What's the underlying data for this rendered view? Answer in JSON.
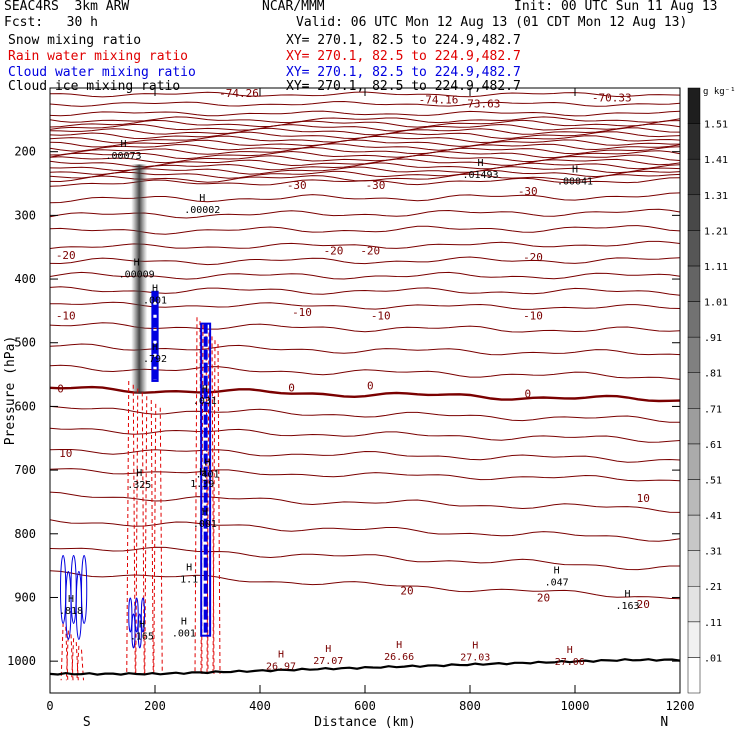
{
  "header": {
    "model": "SEAC4RS  3km ARW",
    "institution": "NCAR/MMM",
    "init": "Init: 00 UTC Sun 11 Aug 13",
    "fcst": "Fcst:   30 h",
    "valid": "Valid: 06 UTC Mon 12 Aug 13 (01 CDT Mon 12 Aug 13)"
  },
  "fields": [
    {
      "name": "Snow mixing ratio",
      "xy": "XY= 270.1, 82.5 to 224.9,482.7",
      "color": "#000000"
    },
    {
      "name": "Rain water mixing ratio",
      "xy": "XY= 270.1, 82.5 to 224.9,482.7",
      "color": "#e00000"
    },
    {
      "name": "Cloud water mixing ratio",
      "xy": "XY= 270.1, 82.5 to 224.9,482.7",
      "color": "#0000e0"
    },
    {
      "name": "Cloud ice mixing ratio",
      "xy": "XY= 270.1, 82.5 to 224.9,482.7",
      "color": "#000000"
    }
  ],
  "chart_data": {
    "type": "contour",
    "xlabel": "Distance (km)",
    "ylabel": "Pressure (hPa)",
    "xlim": [
      0,
      1200
    ],
    "ylim": [
      1050,
      100
    ],
    "x_ticks": [
      0,
      200,
      400,
      600,
      800,
      1000,
      1200
    ],
    "y_ticks": [
      200,
      300,
      400,
      500,
      600,
      700,
      800,
      900,
      1000
    ],
    "x_end_labels": {
      "left": "S",
      "right": "N"
    },
    "temperature_contours": [
      {
        "value": -70,
        "label": "-70",
        "p_left": 150,
        "p_right": 150,
        "label_x": 235
      },
      {
        "value": -30,
        "label": "-30",
        "p_left": 250,
        "p_right": 245,
        "label_x": 470
      },
      {
        "value": -20,
        "label": "-20",
        "p_left": 350,
        "p_right": 345,
        "label_x": 470
      },
      {
        "value": -10,
        "label": "-10",
        "p_left": 440,
        "p_right": 445,
        "label_x": 600
      },
      {
        "value": 0,
        "label": "0",
        "p_left": 572,
        "p_right": 590,
        "label_x": 455
      },
      {
        "value": 10,
        "label": "10",
        "p_left": 700,
        "p_right": 715,
        "label_x": 570
      },
      {
        "value": 20,
        "label": "20",
        "p_left": 860,
        "p_right": 900,
        "label_x": 620
      }
    ],
    "contour_labels": [
      {
        "text": "-74.26",
        "x": 360,
        "p": 108
      },
      {
        "text": "-74.16",
        "x": 740,
        "p": 118
      },
      {
        "text": "-73.63",
        "x": 820,
        "p": 124
      },
      {
        "text": "-70.33",
        "x": 1070,
        "p": 115
      },
      {
        "text": "-30",
        "x": 470,
        "p": 252
      },
      {
        "text": "-30",
        "x": 620,
        "p": 252
      },
      {
        "text": "-30",
        "x": 910,
        "p": 262
      },
      {
        "text": "-20",
        "x": 30,
        "p": 362
      },
      {
        "text": "-20",
        "x": 540,
        "p": 355
      },
      {
        "text": "-20",
        "x": 610,
        "p": 355
      },
      {
        "text": "-20",
        "x": 920,
        "p": 365
      },
      {
        "text": "-10",
        "x": 30,
        "p": 457
      },
      {
        "text": "-10",
        "x": 480,
        "p": 452
      },
      {
        "text": "-10",
        "x": 630,
        "p": 457
      },
      {
        "text": "-10",
        "x": 920,
        "p": 457
      },
      {
        "text": "0",
        "x": 20,
        "p": 572
      },
      {
        "text": "0",
        "x": 460,
        "p": 570
      },
      {
        "text": "0",
        "x": 610,
        "p": 567
      },
      {
        "text": "0",
        "x": 910,
        "p": 580
      },
      {
        "text": "10",
        "x": 30,
        "p": 673
      },
      {
        "text": "10",
        "x": 1130,
        "p": 744
      },
      {
        "text": "20",
        "x": 680,
        "p": 889
      },
      {
        "text": "20",
        "x": 940,
        "p": 900
      },
      {
        "text": "20",
        "x": 1130,
        "p": 910
      }
    ],
    "extrema": [
      {
        "mark": "H",
        "value": ".00073",
        "x": 140,
        "p": 205
      },
      {
        "mark": "H",
        "value": ".00002",
        "x": 290,
        "p": 290
      },
      {
        "mark": "H",
        "value": ".01493",
        "x": 820,
        "p": 235
      },
      {
        "mark": "H",
        "value": ".00041",
        "x": 1000,
        "p": 245
      },
      {
        "mark": "H",
        "value": ".00009",
        "x": 165,
        "p": 391
      },
      {
        "mark": "H",
        "value": ".001",
        "x": 200,
        "p": 432
      },
      {
        "mark": "H",
        "value": ".792",
        "x": 200,
        "p": 524
      },
      {
        "mark": "H",
        "value": ".031",
        "x": 295,
        "p": 590
      },
      {
        "mark": "H",
        "value": ".325",
        "x": 170,
        "p": 722
      },
      {
        "mark": "H",
        "value": "1.39",
        "x": 290,
        "p": 720
      },
      {
        "mark": "H",
        "value": ".401",
        "x": 300,
        "p": 705
      },
      {
        "mark": "H",
        "value": ".001",
        "x": 295,
        "p": 783
      },
      {
        "mark": "H",
        "value": "1.1",
        "x": 265,
        "p": 870
      },
      {
        "mark": "H",
        "value": ".001",
        "x": 255,
        "p": 955
      },
      {
        "mark": "H",
        "value": ".818",
        "x": 40,
        "p": 920
      },
      {
        "mark": "H",
        "value": ".165",
        "x": 175,
        "p": 960
      },
      {
        "mark": "H",
        "value": ".047",
        "x": 965,
        "p": 875
      },
      {
        "mark": "H",
        "value": ".163",
        "x": 1100,
        "p": 912
      },
      {
        "mark": "H",
        "value": "26.97",
        "x": 440,
        "p": 1007
      },
      {
        "mark": "H",
        "value": "27.07",
        "x": 530,
        "p": 998
      },
      {
        "mark": "H",
        "value": "26.66",
        "x": 665,
        "p": 992
      },
      {
        "mark": "H",
        "value": "27.03",
        "x": 810,
        "p": 993
      },
      {
        "mark": "H",
        "value": "27.06",
        "x": 990,
        "p": 1000
      }
    ],
    "colorbar": {
      "unit": "g kg⁻¹",
      "levels": [
        ".01",
        ".11",
        ".21",
        ".31",
        ".41",
        ".51",
        ".61",
        ".71",
        ".81",
        ".91",
        "1.01",
        "1.11",
        "1.21",
        "1.31",
        "1.41",
        "1.51"
      ]
    },
    "snow_shading": [
      {
        "x": 170,
        "p_top": 220,
        "p_bottom": 580
      }
    ],
    "rain_columns": [
      {
        "x_min": 150,
        "x_max": 210,
        "p_top": 560,
        "p_bottom": 1020
      },
      {
        "x_min": 280,
        "x_max": 320,
        "p_top": 460,
        "p_bottom": 1020
      },
      {
        "x_min": 25,
        "x_max": 60,
        "p_top": 940,
        "p_bottom": 1030
      }
    ],
    "cloud_water_columns": [
      {
        "x_min": 195,
        "x_max": 205,
        "p_top": 420,
        "p_bottom": 560
      },
      {
        "x_min": 288,
        "x_max": 305,
        "p_top": 470,
        "p_bottom": 960
      },
      {
        "x_min": 20,
        "x_max": 70,
        "p_top": 820,
        "p_bottom": 980
      },
      {
        "x_min": 150,
        "x_max": 180,
        "p_top": 900,
        "p_bottom": 980
      }
    ]
  }
}
